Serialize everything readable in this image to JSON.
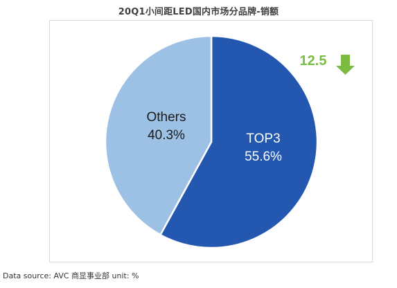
{
  "title": "20Q1小间距LED国内市场分品牌-销额",
  "source": "Data source: AVC 商显事业部 unit: %",
  "colors": {
    "top3": "#2458B0",
    "others": "#9DC1E5",
    "change": "#7CBB42",
    "title": "#404040",
    "slice_border": "#ffffff"
  },
  "change_indicator": {
    "value": "12.5",
    "direction": "down",
    "icon": "arrow-down-icon"
  },
  "chart_data": {
    "type": "pie",
    "title": "20Q1小间距LED国内市场分品牌-销额",
    "unit": "%",
    "slices": [
      {
        "name": "TOP3",
        "value": 55.6,
        "label_line1": "TOP3",
        "label_line2": "55.6%"
      },
      {
        "name": "Others",
        "value": 40.3,
        "label_line1": "Others",
        "label_line2": "40.3%"
      }
    ],
    "legend": "none"
  }
}
